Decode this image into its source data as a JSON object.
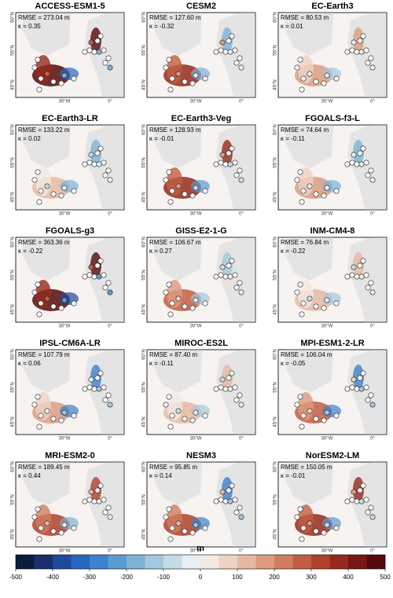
{
  "panels": [
    {
      "title": "ACCESS-ESM1-5",
      "rmse": "RMSE = 273.04 m",
      "kappa": "κ = 0.35"
    },
    {
      "title": "CESM2",
      "rmse": "RMSE = 127.60 m",
      "kappa": "κ = -0.32"
    },
    {
      "title": "EC-Earth3",
      "rmse": "RMSE = 80.53 m",
      "kappa": "κ = 0.01"
    },
    {
      "title": "EC-Earth3-LR",
      "rmse": "RMSE = 133.22 m",
      "kappa": "κ = 0.02"
    },
    {
      "title": "EC-Earth3-Veg",
      "rmse": "RMSE = 128.93 m",
      "kappa": "κ = -0.01"
    },
    {
      "title": "FGOALS-f3-L",
      "rmse": "RMSE = 74.64 m",
      "kappa": "κ = -0.11"
    },
    {
      "title": "FGOALS-g3",
      "rmse": "RMSE = 363.36 m",
      "kappa": "κ = -0.22"
    },
    {
      "title": "GISS-E2-1-G",
      "rmse": "RMSE = 106.67 m",
      "kappa": "κ = 0.27"
    },
    {
      "title": "INM-CM4-8",
      "rmse": "RMSE = 76.84 m",
      "kappa": "κ = -0.22"
    },
    {
      "title": "IPSL-CM6A-LR",
      "rmse": "RMSE = 107.79 m",
      "kappa": "κ = 0.06"
    },
    {
      "title": "MIROC-ES2L",
      "rmse": "RMSE = 87.40 m",
      "kappa": "κ = -0.11"
    },
    {
      "title": "MPI-ESM1-2-LR",
      "rmse": "RMSE = 106.04 m",
      "kappa": "κ = -0.05"
    },
    {
      "title": "MRI-ESM2-0",
      "rmse": "RMSE = 189.45 m",
      "kappa": "κ = 0.44"
    },
    {
      "title": "NESM3",
      "rmse": "RMSE = 95.85 m",
      "kappa": "κ = 0.14"
    },
    {
      "title": "NorESM2-LM",
      "rmse": "RMSE = 150.05 m",
      "kappa": "κ = -0.01"
    }
  ],
  "map_labels": {
    "lat": [
      "60°N",
      "55°N",
      "45°N"
    ],
    "lon": [
      "30°W",
      "0°"
    ]
  },
  "colorbar": {
    "label": "m",
    "lim": [
      -500,
      500
    ],
    "ticks": [
      -500,
      -400,
      -300,
      -200,
      -100,
      0,
      100,
      200,
      300,
      400,
      500
    ],
    "colors": [
      "#0d1b3d",
      "#1a2f6b",
      "#1f4a9c",
      "#2a66c0",
      "#3d82cc",
      "#5b9bd0",
      "#7eb1d6",
      "#a3c7de",
      "#c6dbe6",
      "#e8eef2",
      "#f3e9e3",
      "#eed2c3",
      "#e6b8a2",
      "#dc9b80",
      "#d07d5f",
      "#c25e42",
      "#b0412b",
      "#962a1d",
      "#781814",
      "#560a0d"
    ]
  }
}
